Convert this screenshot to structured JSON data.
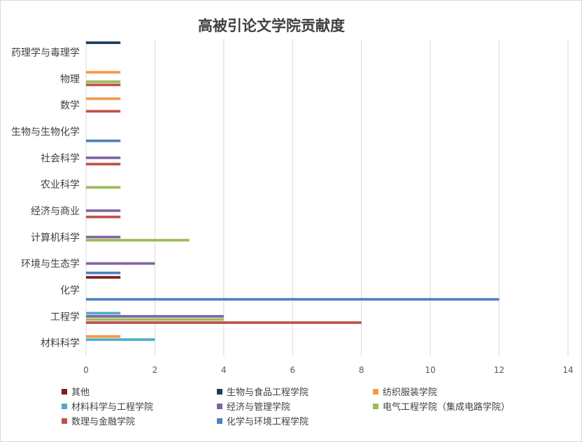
{
  "chart_data": {
    "type": "bar",
    "orientation": "horizontal",
    "title": "高被引论文学院贡献度",
    "xlabel": "",
    "ylabel": "",
    "xlim": [
      0,
      14
    ],
    "xticks": [
      0,
      2,
      4,
      6,
      8,
      10,
      12,
      14
    ],
    "grid": true,
    "legend_position": "bottom",
    "categories": [
      "材料科学",
      "工程学",
      "化学",
      "环境与生态学",
      "计算机科学",
      "经济与商业",
      "农业科学",
      "社会科学",
      "生物与生物化学",
      "数学",
      "物理",
      "药理学与毒理学"
    ],
    "series": [
      {
        "name": "其他",
        "color": "#7a1f1c",
        "values": [
          0,
          0,
          1,
          0,
          0,
          0,
          0,
          0,
          0,
          0,
          0,
          0
        ]
      },
      {
        "name": "生物与食品工程学院",
        "color": "#1f3b5c",
        "values": [
          0,
          0,
          0,
          0,
          0,
          0,
          0,
          0,
          0,
          0,
          0,
          1
        ]
      },
      {
        "name": "纺织服装学院",
        "color": "#f79646",
        "values": [
          1,
          0,
          0,
          0,
          0,
          0,
          0,
          0,
          0,
          1,
          1,
          0
        ]
      },
      {
        "name": "材料科学与工程学院",
        "color": "#4bacc6",
        "values": [
          2,
          1,
          0,
          0,
          0,
          0,
          0,
          0,
          0,
          0,
          0,
          0
        ]
      },
      {
        "name": "经济与管理学院",
        "color": "#8064a2",
        "values": [
          0,
          4,
          0,
          2,
          1,
          1,
          0,
          1,
          0,
          0,
          0,
          0
        ]
      },
      {
        "name": "电气工程学院（集成电路学院）",
        "color": "#9bbb59",
        "values": [
          0,
          4,
          0,
          0,
          3,
          0,
          1,
          0,
          0,
          0,
          1,
          0
        ]
      },
      {
        "name": "数理与金融学院",
        "color": "#c0504d",
        "values": [
          0,
          8,
          0,
          0,
          0,
          1,
          0,
          1,
          0,
          1,
          1,
          0
        ]
      },
      {
        "name": "化学与环境工程学院",
        "color": "#4f81bd",
        "values": [
          0,
          0,
          12,
          1,
          0,
          0,
          0,
          0,
          1,
          0,
          0,
          0
        ]
      }
    ]
  }
}
